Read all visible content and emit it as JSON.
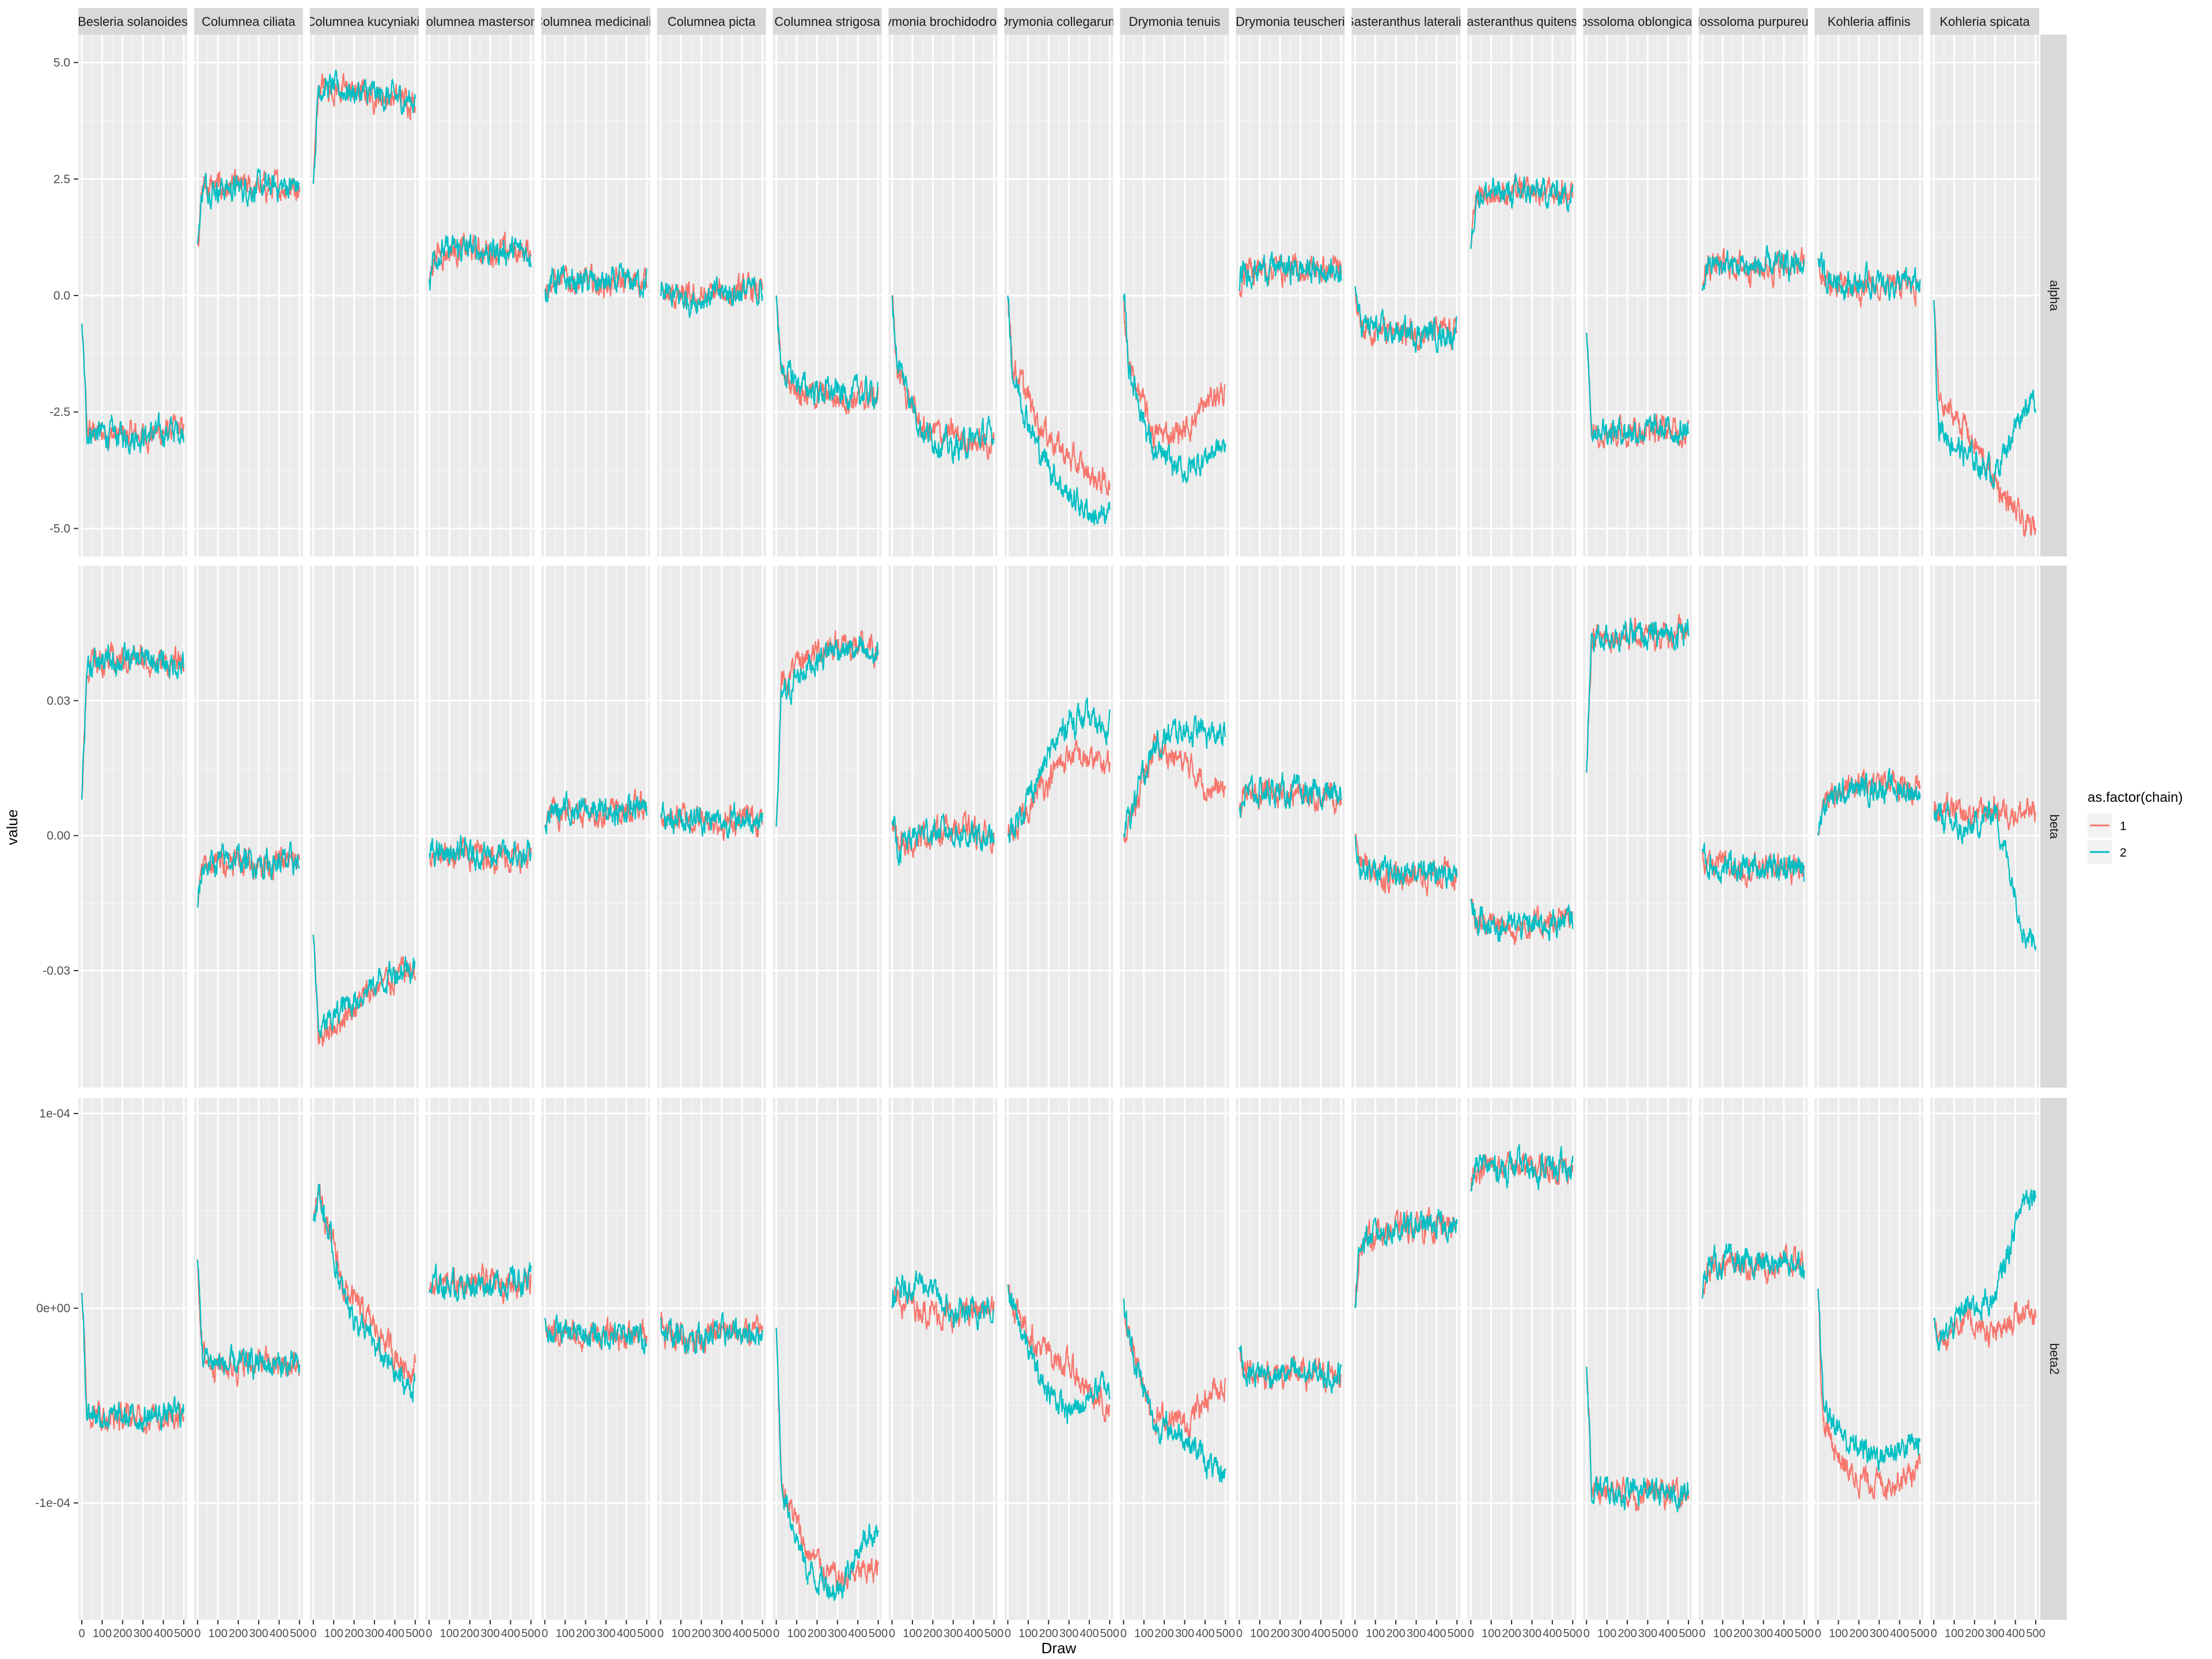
{
  "chart_data": {
    "type": "line",
    "title": "",
    "xlabel": "Draw",
    "ylabel": "value",
    "x_range": [
      0,
      500
    ],
    "x_ticks": [
      0,
      100,
      200,
      300,
      400,
      500
    ],
    "x_tick_labels": [
      "0",
      "100",
      "200",
      "300",
      "400",
      "500"
    ],
    "facet_columns": [
      "Besleria solanoides",
      "Columnea ciliata",
      "Columnea kucyniakii",
      "Columnea mastersonii",
      "Columnea medicinalis",
      "Columnea picta",
      "Columnea strigosa",
      "Drymonia brochidodroma",
      "Drymonia collegarum",
      "Drymonia tenuis",
      "Drymonia teuscheri",
      "Gasteranthus lateralis",
      "Gasteranthus quitensis",
      "Glossoloma oblongicalyx",
      "Glossoloma purpureum",
      "Kohleria affinis",
      "Kohleria spicata"
    ],
    "facet_rows": [
      "alpha",
      "beta",
      "beta2"
    ],
    "rows": [
      {
        "name": "alpha",
        "ylim": [
          -5.6,
          5.6
        ],
        "y_ticks": [
          5.0,
          2.5,
          0.0,
          -2.5,
          -5.0
        ],
        "y_tick_labels": [
          "5.0",
          "2.5",
          "0.0",
          "-2.5",
          "-5.0"
        ]
      },
      {
        "name": "beta",
        "ylim": [
          -0.056,
          0.06
        ],
        "y_ticks": [
          0.03,
          0.0,
          -0.03
        ],
        "y_tick_labels": [
          "0.03",
          "0.00",
          "-0.03"
        ]
      },
      {
        "name": "beta2",
        "ylim": [
          -0.00016,
          0.000108
        ],
        "y_ticks": [
          0.0001,
          0,
          -0.0001
        ],
        "y_tick_labels": [
          "1e-04",
          "0e+00",
          "-1e-04"
        ]
      }
    ],
    "legend": {
      "title": "as.factor(chain)",
      "position": "right",
      "entries": [
        {
          "label": "1",
          "color": "#F8766D"
        },
        {
          "label": "2",
          "color": "#00BFC4"
        }
      ]
    },
    "series_colors": {
      "1": "#F8766D",
      "2": "#00BFC4"
    },
    "panel_background": "#EBEBEB",
    "grid": true,
    "series_summary": {
      "note": "per panel: [start, approximate level per quarter of the 500 draws] for chain 1 and chain 2",
      "alpha": [
        {
          "facet": "Besleria solanoides",
          "chain1": [
            -0.6,
            -2.9,
            -3.0,
            -3.0,
            -2.9
          ],
          "chain2": [
            -0.6,
            -2.9,
            -3.0,
            -3.0,
            -2.9
          ]
        },
        {
          "facet": "Columnea ciliata",
          "chain1": [
            1.1,
            2.35,
            2.3,
            2.3,
            2.35
          ],
          "chain2": [
            1.1,
            2.35,
            2.3,
            2.3,
            2.35
          ]
        },
        {
          "facet": "Columnea kucyniakii",
          "chain1": [
            2.4,
            4.5,
            4.4,
            4.3,
            4.2
          ],
          "chain2": [
            2.4,
            4.5,
            4.4,
            4.3,
            4.2
          ]
        },
        {
          "facet": "Columnea mastersonii",
          "chain1": [
            0.3,
            0.9,
            1.0,
            0.95,
            0.95
          ],
          "chain2": [
            0.3,
            0.9,
            1.0,
            0.95,
            0.95
          ]
        },
        {
          "facet": "Columnea medicinalis",
          "chain1": [
            0.1,
            0.3,
            0.3,
            0.25,
            0.3
          ],
          "chain2": [
            0.1,
            0.3,
            0.3,
            0.25,
            0.3
          ]
        },
        {
          "facet": "Columnea picta",
          "chain1": [
            0.0,
            0.0,
            -0.1,
            0.05,
            0.1
          ],
          "chain2": [
            0.0,
            0.0,
            -0.1,
            0.05,
            0.1
          ]
        },
        {
          "facet": "Columnea strigosa",
          "chain1": [
            0.0,
            -1.7,
            -2.1,
            -2.2,
            -2.2
          ],
          "chain2": [
            0.0,
            -1.6,
            -2.0,
            -2.1,
            -2.1
          ]
        },
        {
          "facet": "Drymonia brochidodroma",
          "chain1": [
            0.0,
            -1.6,
            -2.9,
            -3.0,
            -3.2
          ],
          "chain2": [
            0.0,
            -1.4,
            -2.9,
            -3.3,
            -3.0
          ]
        },
        {
          "facet": "Drymonia collegarum",
          "chain1": [
            0.0,
            -1.5,
            -2.7,
            -3.5,
            -4.0
          ],
          "chain2": [
            0.0,
            -1.7,
            -3.3,
            -4.3,
            -4.8
          ]
        },
        {
          "facet": "Drymonia tenuis",
          "chain1": [
            0.0,
            -1.5,
            -3.0,
            -2.9,
            -2.1
          ],
          "chain2": [
            0.0,
            -1.5,
            -3.4,
            -3.8,
            -3.3
          ]
        },
        {
          "facet": "Drymonia teuscheri",
          "chain1": [
            0.1,
            0.55,
            0.6,
            0.55,
            0.55
          ],
          "chain2": [
            0.1,
            0.55,
            0.6,
            0.55,
            0.55
          ]
        },
        {
          "facet": "Gasteranthus lateralis",
          "chain1": [
            0.2,
            -0.6,
            -0.8,
            -0.8,
            -0.8
          ],
          "chain2": [
            0.2,
            -0.6,
            -0.8,
            -0.8,
            -0.8
          ]
        },
        {
          "facet": "Gasteranthus quitensis",
          "chain1": [
            1.0,
            2.2,
            2.2,
            2.2,
            2.2
          ],
          "chain2": [
            1.0,
            2.2,
            2.2,
            2.2,
            2.2
          ]
        },
        {
          "facet": "Glossoloma oblongicalyx",
          "chain1": [
            -0.8,
            -2.8,
            -2.9,
            -2.9,
            -2.9
          ],
          "chain2": [
            -0.8,
            -2.8,
            -2.9,
            -2.9,
            -2.9
          ]
        },
        {
          "facet": "Glossoloma purpureum",
          "chain1": [
            0.1,
            0.65,
            0.65,
            0.6,
            0.65
          ],
          "chain2": [
            0.1,
            0.65,
            0.65,
            0.6,
            0.65
          ]
        },
        {
          "facet": "Kohleria affinis",
          "chain1": [
            0.8,
            0.3,
            0.1,
            0.15,
            0.2
          ],
          "chain2": [
            0.8,
            0.45,
            0.25,
            0.25,
            0.25
          ]
        },
        {
          "facet": "Kohleria spicata",
          "chain1": [
            -0.1,
            -2.3,
            -2.8,
            -4.0,
            -5.0
          ],
          "chain2": [
            -0.1,
            -2.8,
            -3.4,
            -3.8,
            -2.3
          ]
        }
      ],
      "beta": [
        {
          "facet": "Besleria solanoides",
          "chain1": [
            0.008,
            0.038,
            0.039,
            0.039,
            0.038
          ],
          "chain2": [
            0.008,
            0.038,
            0.039,
            0.039,
            0.038
          ]
        },
        {
          "facet": "Columnea ciliata",
          "chain1": [
            -0.016,
            -0.007,
            -0.005,
            -0.006,
            -0.006
          ],
          "chain2": [
            -0.016,
            -0.007,
            -0.005,
            -0.006,
            -0.006
          ]
        },
        {
          "facet": "Columnea kucyniakii",
          "chain1": [
            -0.022,
            -0.045,
            -0.04,
            -0.034,
            -0.03
          ],
          "chain2": [
            -0.022,
            -0.044,
            -0.038,
            -0.033,
            -0.029
          ]
        },
        {
          "facet": "Columnea mastersonii",
          "chain1": [
            -0.004,
            -0.004,
            -0.004,
            -0.004,
            -0.005
          ],
          "chain2": [
            -0.004,
            -0.004,
            -0.004,
            -0.004,
            -0.005
          ]
        },
        {
          "facet": "Columnea medicinalis",
          "chain1": [
            0.002,
            0.005,
            0.006,
            0.005,
            0.006
          ],
          "chain2": [
            0.002,
            0.005,
            0.006,
            0.005,
            0.006
          ]
        },
        {
          "facet": "Columnea picta",
          "chain1": [
            0.004,
            0.004,
            0.004,
            0.003,
            0.004
          ],
          "chain2": [
            0.004,
            0.004,
            0.004,
            0.003,
            0.004
          ]
        },
        {
          "facet": "Columnea strigosa",
          "chain1": [
            0.002,
            0.033,
            0.04,
            0.043,
            0.041
          ],
          "chain2": [
            0.002,
            0.03,
            0.038,
            0.042,
            0.04
          ]
        },
        {
          "facet": "Drymonia brochidodroma",
          "chain1": [
            0.003,
            -0.002,
            0.0,
            0.002,
            0.0
          ],
          "chain2": [
            0.003,
            -0.003,
            0.001,
            0.001,
            -0.001
          ]
        },
        {
          "facet": "Drymonia collegarum",
          "chain1": [
            0.0,
            0.0,
            0.01,
            0.018,
            0.016
          ],
          "chain2": [
            0.0,
            0.002,
            0.013,
            0.026,
            0.025
          ]
        },
        {
          "facet": "Drymonia tenuis",
          "chain1": [
            0.0,
            0.002,
            0.02,
            0.016,
            0.01
          ],
          "chain2": [
            0.0,
            0.004,
            0.02,
            0.024,
            0.022
          ]
        },
        {
          "facet": "Drymonia teuscheri",
          "chain1": [
            0.006,
            0.009,
            0.01,
            0.009,
            0.009
          ],
          "chain2": [
            0.006,
            0.009,
            0.01,
            0.009,
            0.009
          ]
        },
        {
          "facet": "Gasteranthus lateralis",
          "chain1": [
            0.0,
            -0.006,
            -0.009,
            -0.009,
            -0.008
          ],
          "chain2": [
            0.0,
            -0.006,
            -0.009,
            -0.008,
            -0.008
          ]
        },
        {
          "facet": "Gasteranthus quitensis",
          "chain1": [
            -0.014,
            -0.019,
            -0.02,
            -0.02,
            -0.019
          ],
          "chain2": [
            -0.014,
            -0.019,
            -0.02,
            -0.02,
            -0.019
          ]
        },
        {
          "facet": "Glossoloma oblongicalyx",
          "chain1": [
            0.014,
            0.044,
            0.045,
            0.044,
            0.045
          ],
          "chain2": [
            0.014,
            0.044,
            0.045,
            0.044,
            0.045
          ]
        },
        {
          "facet": "Glossoloma purpureum",
          "chain1": [
            -0.003,
            -0.007,
            -0.007,
            -0.007,
            -0.007
          ],
          "chain2": [
            -0.003,
            -0.007,
            -0.007,
            -0.007,
            -0.007
          ]
        },
        {
          "facet": "Kohleria affinis",
          "chain1": [
            0.0,
            0.009,
            0.011,
            0.012,
            0.011
          ],
          "chain2": [
            0.0,
            0.007,
            0.01,
            0.011,
            0.01
          ]
        },
        {
          "facet": "Kohleria spicata",
          "chain1": [
            0.005,
            0.006,
            0.004,
            0.006,
            0.005
          ],
          "chain2": [
            0.005,
            0.005,
            0.0,
            0.006,
            -0.022
          ]
        }
      ],
      "beta2": [
        {
          "facet": "Besleria solanoides",
          "chain1": [
            8e-06,
            -5.2e-05,
            -5.7e-05,
            -5.6e-05,
            -5.4e-05
          ],
          "chain2": [
            8e-06,
            -5.2e-05,
            -5.7e-05,
            -5.6e-05,
            -5.4e-05
          ]
        },
        {
          "facet": "Columnea ciliata",
          "chain1": [
            2.5e-05,
            -2.5e-05,
            -3e-05,
            -2.8e-05,
            -3e-05
          ],
          "chain2": [
            2.5e-05,
            -2.5e-05,
            -3e-05,
            -2.8e-05,
            -3e-05
          ]
        },
        {
          "facet": "Columnea kucyniakii",
          "chain1": [
            4.5e-05,
            6e-05,
            1e-05,
            -1e-05,
            -3e-05
          ],
          "chain2": [
            4.5e-05,
            6e-05,
            5e-06,
            -2e-05,
            -4e-05
          ]
        },
        {
          "facet": "Columnea mastersonii",
          "chain1": [
            8e-06,
            1.3e-05,
            1.2e-05,
            1.3e-05,
            1.4e-05
          ],
          "chain2": [
            8e-06,
            1.3e-05,
            1.2e-05,
            1.3e-05,
            1.4e-05
          ]
        },
        {
          "facet": "Columnea medicinalis",
          "chain1": [
            -5e-06,
            -1.2e-05,
            -1.4e-05,
            -1.4e-05,
            -1.4e-05
          ],
          "chain2": [
            -5e-06,
            -1.2e-05,
            -1.4e-05,
            -1.4e-05,
            -1.4e-05
          ]
        },
        {
          "facet": "Columnea picta",
          "chain1": [
            -5e-06,
            -1.3e-05,
            -1.5e-05,
            -1.3e-05,
            -1.2e-05
          ],
          "chain2": [
            -5e-06,
            -1.3e-05,
            -1.5e-05,
            -1.3e-05,
            -1.2e-05
          ]
        },
        {
          "facet": "Columnea strigosa",
          "chain1": [
            -1e-05,
            -9e-05,
            -0.000125,
            -0.00014,
            -0.000135
          ],
          "chain2": [
            -1e-05,
            -9e-05,
            -0.000135,
            -0.000145,
            -0.000115
          ]
        },
        {
          "facet": "Drymonia brochidodroma",
          "chain1": [
            0.0,
            5e-06,
            0.0,
            -5e-06,
            0.0
          ],
          "chain2": [
            0.0,
            8e-06,
            1.5e-05,
            -5e-06,
            0.0
          ]
        },
        {
          "facet": "Drymonia collegarum",
          "chain1": [
            1.2e-05,
            3e-06,
            -2e-05,
            -3e-05,
            -5e-05
          ],
          "chain2": [
            1.2e-05,
            0.0,
            -3.5e-05,
            -5.5e-05,
            -4e-05
          ]
        },
        {
          "facet": "Drymonia tenuis",
          "chain1": [
            5e-06,
            -1.5e-05,
            -5.5e-05,
            -6e-05,
            -4e-05
          ],
          "chain2": [
            5e-06,
            -1.5e-05,
            -6e-05,
            -6.5e-05,
            -8.5e-05
          ]
        },
        {
          "facet": "Drymonia teuscheri",
          "chain1": [
            -2e-05,
            -3.2e-05,
            -3.4e-05,
            -3.4e-05,
            -3.4e-05
          ],
          "chain2": [
            -2e-05,
            -3.2e-05,
            -3.4e-05,
            -3.4e-05,
            -3.4e-05
          ]
        },
        {
          "facet": "Gasteranthus lateralis",
          "chain1": [
            0.0,
            3.5e-05,
            4e-05,
            4.2e-05,
            4.2e-05
          ],
          "chain2": [
            0.0,
            3.5e-05,
            4e-05,
            4.2e-05,
            4.2e-05
          ]
        },
        {
          "facet": "Gasteranthus quitensis",
          "chain1": [
            6e-05,
            7.3e-05,
            7.2e-05,
            7.2e-05,
            7.2e-05
          ],
          "chain2": [
            6e-05,
            7.3e-05,
            7.2e-05,
            7.2e-05,
            7.2e-05
          ]
        },
        {
          "facet": "Glossoloma oblongicalyx",
          "chain1": [
            -3e-05,
            -9.2e-05,
            -9.5e-05,
            -9.4e-05,
            -9.6e-05
          ],
          "chain2": [
            -3e-05,
            -9.2e-05,
            -9.5e-05,
            -9.4e-05,
            -9.6e-05
          ]
        },
        {
          "facet": "Glossoloma purpureum",
          "chain1": [
            5e-06,
            2.2e-05,
            2.3e-05,
            2.2e-05,
            2.4e-05
          ],
          "chain2": [
            5e-06,
            2.2e-05,
            2.3e-05,
            2.2e-05,
            2.4e-05
          ]
        },
        {
          "facet": "Kohleria affinis",
          "chain1": [
            1e-05,
            -6e-05,
            -8.5e-05,
            -9e-05,
            -8.5e-05
          ],
          "chain2": [
            1e-05,
            -5e-05,
            -7e-05,
            -7.5e-05,
            -7e-05
          ]
        },
        {
          "facet": "Kohleria spicata",
          "chain1": [
            -5e-06,
            -1.5e-05,
            -5e-06,
            -1.5e-05,
            0.0
          ],
          "chain2": [
            -5e-06,
            -2e-05,
            0.0,
            5e-06,
            6e-05
          ]
        }
      ]
    }
  }
}
